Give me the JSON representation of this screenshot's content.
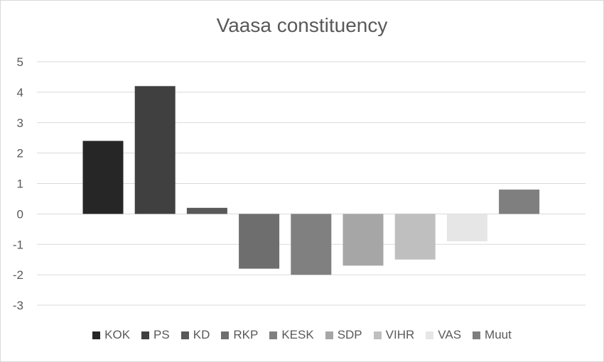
{
  "chart_data": {
    "type": "bar",
    "title": "Vaasa constituency",
    "categories": [
      "KOK",
      "PS",
      "KD",
      "RKP",
      "KESK",
      "SDP",
      "VIHR",
      "VAS",
      "Muut"
    ],
    "values": [
      2.4,
      4.2,
      0.2,
      -1.8,
      -2.0,
      -1.7,
      -1.5,
      -0.9,
      0.8
    ],
    "colors": [
      "#262626",
      "#404040",
      "#595959",
      "#6e6e6e",
      "#808080",
      "#a6a6a6",
      "#bfbfbf",
      "#e6e6e6",
      "#7f7f7f"
    ],
    "ylim": [
      -3,
      5
    ],
    "yticks": [
      "5",
      "4",
      "3",
      "2",
      "1",
      "0",
      "-1",
      "-2",
      "-3"
    ],
    "grid": true,
    "legend_position": "bottom"
  }
}
